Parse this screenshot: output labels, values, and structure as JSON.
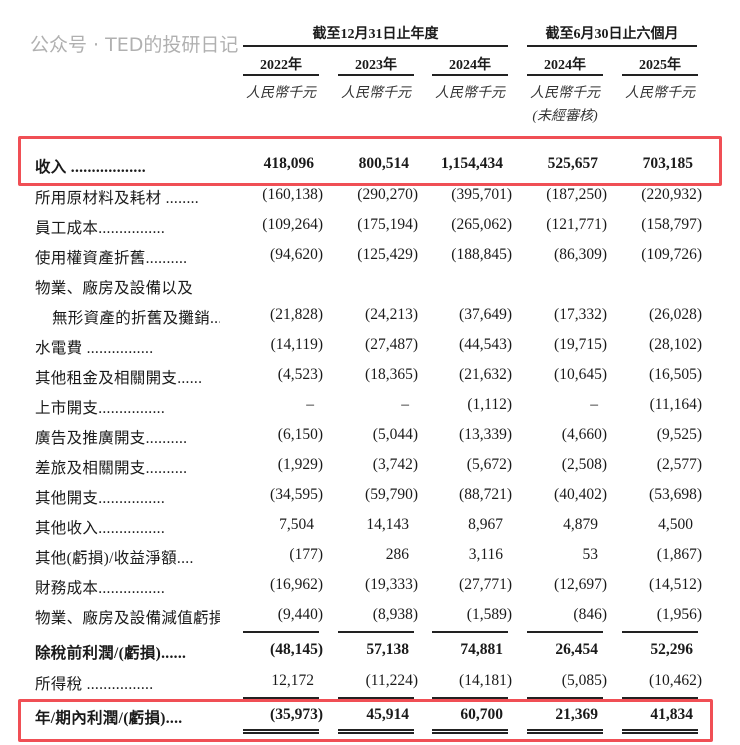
{
  "header": {
    "group_annual": "截至12月31日止年度",
    "group_interim": "截至6月30日止六個月",
    "years": [
      "2022年",
      "2023年",
      "2024年",
      "2024年",
      "2025年"
    ],
    "units": [
      "人民幣千元",
      "人民幣千元",
      "人民幣千元",
      "人民幣千元",
      "人民幣千元"
    ],
    "unaudited_note": "(未經審核)"
  },
  "rows": [
    {
      "label": "收入 ..................",
      "values": [
        "418,096",
        "800,514",
        "1,154,434",
        "525,657",
        "703,185"
      ],
      "bold": true
    },
    {
      "label": "所用原材料及耗材 ........",
      "values": [
        "(160,138)",
        "(290,270)",
        "(395,701)",
        "(187,250)",
        "(220,932)"
      ]
    },
    {
      "label": "員工成本................",
      "values": [
        "(109,264)",
        "(175,194)",
        "(265,062)",
        "(121,771)",
        "(158,797)"
      ]
    },
    {
      "label": "使用權資產折舊..........",
      "values": [
        "(94,620)",
        "(125,429)",
        "(188,845)",
        "(86,309)",
        "(109,726)"
      ]
    },
    {
      "label": "物業、廠房及設備以及",
      "values": [
        "",
        "",
        "",
        "",
        ""
      ]
    },
    {
      "label": "無形資產的折舊及攤銷...",
      "values": [
        "(21,828)",
        "(24,213)",
        "(37,649)",
        "(17,332)",
        "(26,028)"
      ],
      "indent": true
    },
    {
      "label": "水電費 ................",
      "values": [
        "(14,119)",
        "(27,487)",
        "(44,543)",
        "(19,715)",
        "(28,102)"
      ]
    },
    {
      "label": "其他租金及相關開支......",
      "values": [
        "(4,523)",
        "(18,365)",
        "(21,632)",
        "(10,645)",
        "(16,505)"
      ]
    },
    {
      "label": "上市開支................",
      "values": [
        "–",
        "–",
        "(1,112)",
        "–",
        "(11,164)"
      ]
    },
    {
      "label": "廣告及推廣開支..........",
      "values": [
        "(6,150)",
        "(5,044)",
        "(13,339)",
        "(4,660)",
        "(9,525)"
      ]
    },
    {
      "label": "差旅及相關開支..........",
      "values": [
        "(1,929)",
        "(3,742)",
        "(5,672)",
        "(2,508)",
        "(2,577)"
      ]
    },
    {
      "label": "其他開支................",
      "values": [
        "(34,595)",
        "(59,790)",
        "(88,721)",
        "(40,402)",
        "(53,698)"
      ]
    },
    {
      "label": "其他收入................",
      "values": [
        "7,504",
        "14,143",
        "8,967",
        "4,879",
        "4,500"
      ]
    },
    {
      "label": "其他(虧損)/收益淨額....",
      "values": [
        "(177)",
        "286",
        "3,116",
        "53",
        "(1,867)"
      ]
    },
    {
      "label": "財務成本................",
      "values": [
        "(16,962)",
        "(19,333)",
        "(27,771)",
        "(12,697)",
        "(14,512)"
      ]
    },
    {
      "label": "物業、廠房及設備減值虧損",
      "values": [
        "(9,440)",
        "(8,938)",
        "(1,589)",
        "(846)",
        "(1,956)"
      ]
    },
    {
      "label": "除稅前利潤/(虧損)......",
      "values": [
        "(48,145)",
        "57,138",
        "74,881",
        "26,454",
        "52,296"
      ],
      "bold": true
    },
    {
      "label": "所得稅 ................",
      "values": [
        "12,172",
        "(11,224)",
        "(14,181)",
        "(5,085)",
        "(10,462)"
      ]
    },
    {
      "label": "年/期內利潤/(虧損)....",
      "values": [
        "(35,973)",
        "45,914",
        "60,700",
        "21,369",
        "41,834"
      ],
      "bold": true
    }
  ],
  "highlight_color": "#f04f55",
  "watermark": "公众号 · TED的投研日记"
}
